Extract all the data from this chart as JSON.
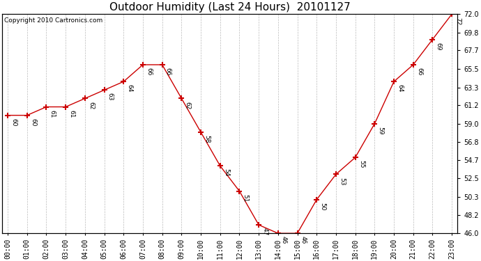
{
  "title": "Outdoor Humidity (Last 24 Hours)  20101127",
  "copyright": "Copyright 2010 Cartronics.com",
  "x_labels": [
    "00:00",
    "01:00",
    "02:00",
    "03:00",
    "04:00",
    "05:00",
    "06:00",
    "07:00",
    "08:00",
    "09:00",
    "10:00",
    "11:00",
    "12:00",
    "13:00",
    "14:00",
    "15:00",
    "16:00",
    "17:00",
    "18:00",
    "19:00",
    "20:00",
    "21:00",
    "22:00",
    "23:00"
  ],
  "hours": [
    0,
    1,
    2,
    3,
    4,
    5,
    6,
    7,
    8,
    9,
    10,
    11,
    12,
    13,
    14,
    15,
    16,
    17,
    18,
    19,
    20,
    21,
    22,
    23
  ],
  "humidity": [
    60,
    60,
    61,
    61,
    62,
    63,
    64,
    66,
    66,
    62,
    58,
    54,
    51,
    47,
    46,
    46,
    50,
    53,
    55,
    59,
    64,
    66,
    69,
    72
  ],
  "y_ticks_right": [
    46.0,
    48.2,
    50.3,
    52.5,
    54.7,
    56.8,
    59.0,
    61.2,
    63.3,
    65.5,
    67.7,
    69.8,
    72.0
  ],
  "line_color": "#cc0000",
  "bg_color": "#ffffff",
  "grid_color": "#bbbbbb",
  "ylim": [
    46.0,
    72.0
  ],
  "xlim": [
    -0.3,
    23.3
  ],
  "title_fontsize": 11,
  "copyright_fontsize": 6.5,
  "annotation_fontsize": 6.5,
  "tick_fontsize": 7
}
